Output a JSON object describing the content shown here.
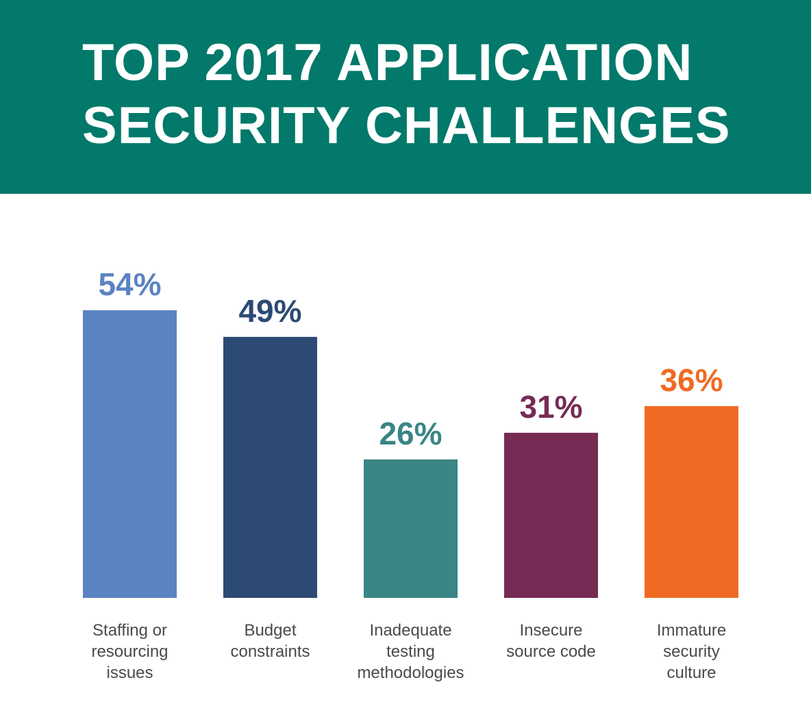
{
  "colors": {
    "header_bg": "#02796A",
    "label_text": "#4a4a4a"
  },
  "header": {
    "title_line1": "TOP 2017 APPLICATION",
    "title_line2": "SECURITY CHALLENGES"
  },
  "chart_data": {
    "type": "bar",
    "title": "TOP 2017 APPLICATION SECURITY CHALLENGES",
    "value_suffix": "%",
    "categories": [
      [
        "Staffing or",
        "resourcing",
        "issues"
      ],
      [
        "Budget",
        "constraints"
      ],
      [
        "Inadequate",
        "testing",
        "methodologies"
      ],
      [
        "Insecure",
        "source code"
      ],
      [
        "Immature",
        "security",
        "culture"
      ]
    ],
    "values": [
      54,
      49,
      26,
      31,
      36
    ],
    "bar_colors": [
      "#5B83C2",
      "#2C4A73",
      "#3A8585",
      "#762B55",
      "#F06A23"
    ],
    "ylim": [
      0,
      100
    ],
    "grid": false,
    "legend": "none"
  }
}
